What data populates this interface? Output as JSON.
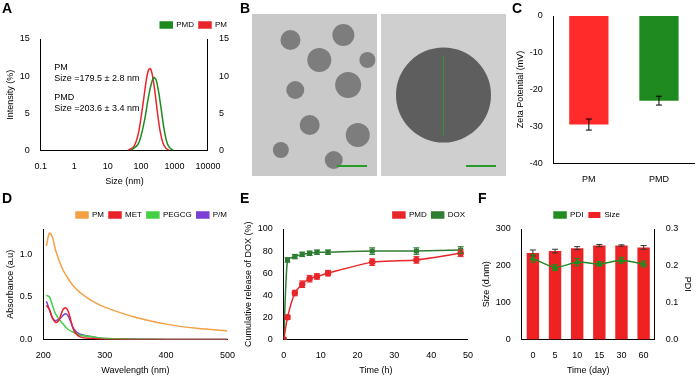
{
  "chart_data": [
    {
      "type": "line",
      "title": "A",
      "xlabel": "Size (nm)",
      "ylabel": "Intensity (%)",
      "log": "x",
      "grid": false,
      "legend": "upper right",
      "xlim": [
        0.1,
        10000
      ],
      "xticks": [
        0.1,
        1,
        10,
        100,
        1000,
        10000
      ],
      "ylim": [
        0,
        15
      ],
      "yticks": [
        0,
        5,
        10,
        15
      ],
      "y2lim": [
        0,
        15
      ],
      "y2ticks": [
        0,
        5,
        10,
        15
      ],
      "annotations": [
        "PM",
        "Size =179.5 ± 2.8 nm",
        "PMD",
        "Size =203.6 ± 3.4 nm"
      ],
      "series": [
        {
          "name": "PMD",
          "color": "#1f8a1f",
          "axis": "y2",
          "marker": "none",
          "line_style": "solid",
          "x": [
            50,
            80,
            100,
            130,
            160,
            200,
            240,
            280,
            330,
            400,
            480,
            580,
            700,
            900
          ],
          "values": [
            0,
            0.8,
            2,
            4.3,
            6.8,
            8.9,
            9.8,
            9.5,
            8,
            5.5,
            3,
            1.2,
            0.4,
            0
          ]
        },
        {
          "name": "PM",
          "color": "#e8262a",
          "marker": "none",
          "line_style": "solid",
          "x": [
            40,
            60,
            80,
            100,
            120,
            140,
            165,
            190,
            220,
            260,
            310,
            370,
            450,
            550,
            700
          ],
          "values": [
            0,
            0.5,
            2,
            4.5,
            7,
            9.2,
            10.8,
            11,
            10,
            7.8,
            5,
            2.6,
            1,
            0.3,
            0
          ]
        }
      ]
    },
    {
      "type": "image",
      "title": "B"
    },
    {
      "type": "bar",
      "title": "C",
      "ylabel": "Zeta Potential (mV)",
      "grid": false,
      "categories": [
        "PM",
        "PMD"
      ],
      "values": [
        -29.5,
        -23
      ],
      "errors": [
        1.5,
        1.2
      ],
      "colors": [
        "#ff2a2a",
        "#1f8a1f"
      ],
      "ylim": [
        -40,
        0
      ],
      "yticks": [
        -40,
        -30,
        -20,
        -10,
        0
      ]
    },
    {
      "type": "line",
      "title": "D",
      "xlabel": "Wavelength (nm)",
      "ylabel": "Absorbance (a.u)",
      "grid": false,
      "legend": "upper right",
      "xlim": [
        200,
        500
      ],
      "xticks": [
        200,
        300,
        400,
        500
      ],
      "ylim": [
        0,
        1.3
      ],
      "yticks": [
        {
          "value": 0,
          "label": "0.0"
        },
        0.5,
        {
          "value": 1,
          "label": "1.0"
        }
      ],
      "series": [
        {
          "name": "PM",
          "color": "#f5a044",
          "marker": "none",
          "line_style": "solid",
          "x": [
            205,
            210,
            215,
            220,
            230,
            240,
            250,
            260,
            280,
            300,
            350,
            400,
            450,
            500
          ],
          "values": [
            1.1,
            1.25,
            1.2,
            1.05,
            0.85,
            0.72,
            0.62,
            0.55,
            0.45,
            0.38,
            0.26,
            0.18,
            0.13,
            0.1
          ]
        },
        {
          "name": "MET",
          "color": "#e8232a",
          "marker": "none",
          "line_style": "solid",
          "x": [
            205,
            210,
            215,
            220,
            225,
            232,
            237,
            242,
            250,
            260,
            280,
            300,
            400,
            500
          ],
          "values": [
            0.4,
            0.35,
            0.25,
            0.2,
            0.22,
            0.35,
            0.37,
            0.3,
            0.1,
            0.03,
            0.01,
            0,
            0,
            0
          ]
        },
        {
          "name": "PEGCG",
          "color": "#44d044",
          "marker": "none",
          "line_style": "solid",
          "x": [
            205,
            210,
            215,
            220,
            230,
            240,
            250,
            260,
            280,
            300,
            400,
            500
          ],
          "values": [
            0.52,
            0.5,
            0.4,
            0.3,
            0.2,
            0.12,
            0.08,
            0.05,
            0.03,
            0.01,
            0,
            0
          ]
        },
        {
          "name": "P/M",
          "color": "#7a3fd6",
          "marker": "none",
          "line_style": "solid",
          "x": [
            205,
            210,
            215,
            220,
            228,
            235,
            240,
            250,
            260,
            280,
            300,
            400,
            500
          ],
          "values": [
            0.45,
            0.35,
            0.25,
            0.22,
            0.25,
            0.3,
            0.28,
            0.12,
            0.06,
            0.03,
            0.01,
            0,
            0
          ]
        }
      ]
    },
    {
      "type": "line",
      "title": "E",
      "xlabel": "Time (h)",
      "ylabel": "Cumulative release of DOX (%)",
      "grid": false,
      "legend": "upper right",
      "xlim": [
        0,
        50
      ],
      "xticks": [
        0,
        10,
        20,
        30,
        40,
        50
      ],
      "ylim": [
        0,
        100
      ],
      "yticks": [
        0,
        20,
        40,
        60,
        80,
        100
      ],
      "series": [
        {
          "name": "PMD",
          "color": "#e8262a",
          "marker": "circle",
          "line_style": "solid",
          "x": [
            0,
            1,
            3,
            5,
            7,
            9,
            12,
            24,
            36,
            48
          ],
          "values": [
            0,
            20,
            42,
            50,
            55,
            57,
            60,
            70,
            72,
            78
          ],
          "errors": [
            0,
            2,
            2.5,
            3,
            3,
            2.5,
            2.5,
            3,
            3,
            3
          ]
        },
        {
          "name": "DOX",
          "color": "#2e7d32",
          "marker": "square",
          "line_style": "solid",
          "x": [
            0,
            1,
            3,
            5,
            7,
            9,
            12,
            24,
            36,
            48
          ],
          "values": [
            0,
            72,
            75,
            77,
            78,
            79,
            79,
            80,
            80,
            81
          ],
          "errors": [
            0,
            2,
            2,
            2,
            2,
            2,
            2,
            3,
            3,
            3
          ]
        }
      ]
    },
    {
      "type": "bar",
      "title": "F",
      "xlabel": "Time (day)",
      "ylabel": "Size (d.nm)",
      "y2label": "PDI",
      "grid": false,
      "legend": "upper center",
      "categories": [
        "0",
        "5",
        "10",
        "15",
        "30",
        "60"
      ],
      "ylim": [
        0,
        300
      ],
      "yticks": [
        0,
        100,
        200,
        300
      ],
      "y2lim": [
        0,
        0.3
      ],
      "y2ticks": [
        {
          "value": 0,
          "label": "0.0"
        },
        0.1,
        0.2,
        0.3
      ],
      "series": [
        {
          "name": "Size",
          "color": "#ee2222",
          "values": [
            235,
            240,
            248,
            255,
            255,
            250
          ],
          "errors": [
            8,
            5,
            4,
            3,
            2,
            5
          ]
        },
        {
          "name": "PDI",
          "type": "line",
          "axis": "y2",
          "color": "#228b22",
          "marker": "triangle",
          "line_style": "solid",
          "values": [
            0.22,
            0.195,
            0.21,
            0.205,
            0.215,
            0.205
          ],
          "errors": [
            0.01,
            0.008,
            0.01,
            0.006,
            0.008,
            0.008
          ]
        }
      ]
    }
  ]
}
